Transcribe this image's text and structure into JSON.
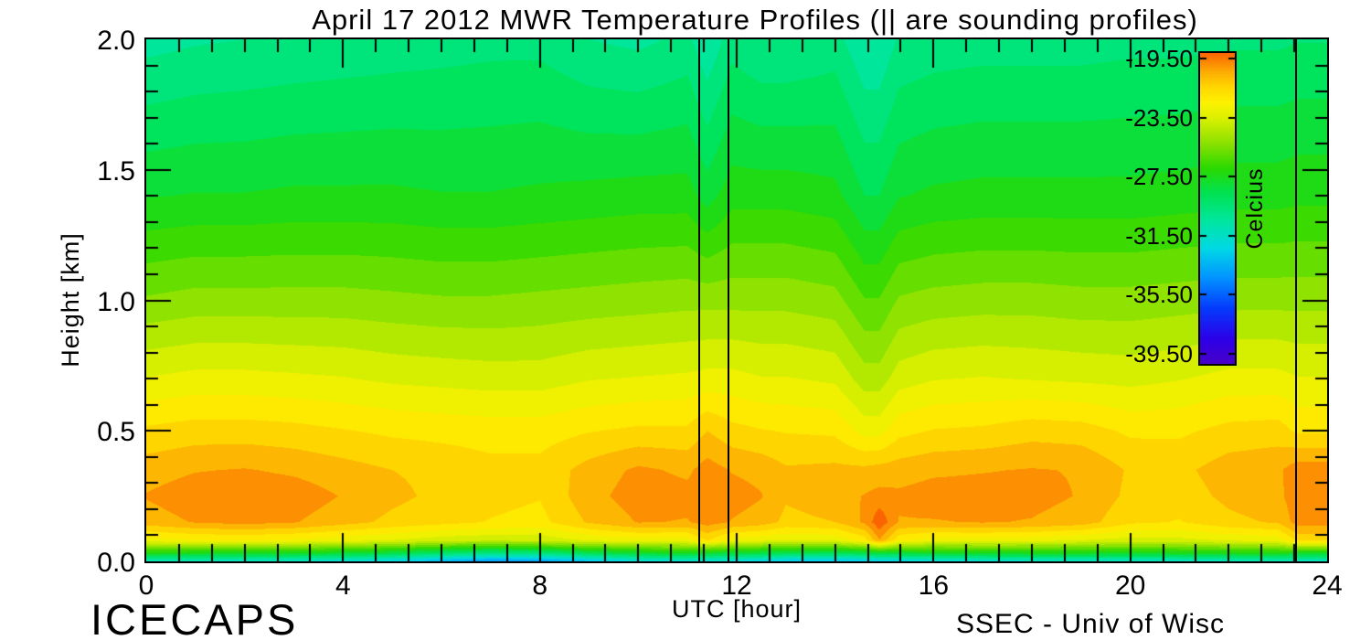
{
  "title": "April 17 2012 MWR Temperature Profiles (|| are sounding profiles)",
  "x_axis": {
    "label": "UTC [hour]",
    "min": 0,
    "max": 24,
    "major_ticks": [
      0,
      4,
      8,
      12,
      16,
      20,
      24
    ],
    "tick_labels": [
      "0",
      "4",
      "8",
      "12",
      "16",
      "20",
      "24"
    ],
    "minor_per_major": 6
  },
  "y_axis": {
    "label": "Height [km]",
    "min": 0,
    "max": 2,
    "major_ticks": [
      0.0,
      0.5,
      1.0,
      1.5,
      2.0
    ],
    "tick_labels": [
      "0.0",
      "0.5",
      "1.0",
      "1.5",
      "2.0"
    ],
    "minor_step": 0.1
  },
  "colorbar": {
    "unit_label": "Celcius",
    "tick_values": [
      -19.5,
      -23.5,
      -27.5,
      -31.5,
      -35.5,
      -39.5
    ],
    "tick_labels": [
      "-19.50",
      "-23.50",
      "-27.50",
      "-31.50",
      "-35.50",
      "-39.50"
    ]
  },
  "annotations": {
    "bottom_left": "ICECAPS",
    "bottom_right": "SSEC - Univ of Wisc"
  },
  "colors": {
    "axis": "#000000",
    "background": "#ffffff"
  },
  "chart_data": {
    "type": "heatmap",
    "xlabel": "UTC [hour]",
    "ylabel": "Height [km]",
    "x_range": [
      0,
      24
    ],
    "y_range": [
      0,
      2
    ],
    "band_step_c": 0.75,
    "sounding_line_hours": [
      11.24,
      11.83,
      23.37
    ],
    "x_hours": [
      0,
      1,
      2,
      3,
      4,
      5,
      6,
      7,
      8,
      9,
      10,
      11,
      11.4,
      11.9,
      12.5,
      13,
      14,
      14.6,
      14.9,
      15.3,
      16,
      17,
      18,
      19,
      20,
      21,
      22,
      23,
      23.4,
      24
    ],
    "y_heights_km": [
      0,
      0.03,
      0.08,
      0.15,
      0.25,
      0.35,
      0.5,
      0.7,
      1.0,
      1.4,
      2.0
    ],
    "temperature_c": [
      [
        -31.2,
        -31.3,
        -31.5,
        -31.6,
        -31.9,
        -32.5,
        -33.6,
        -34.4,
        -34.2,
        -33.2,
        -32.2,
        -31.8,
        -32.0,
        -32.2,
        -32.6,
        -33.0,
        -33.2,
        -33.0,
        -32.8,
        -32.6,
        -32.2,
        -31.9,
        -31.7,
        -31.7,
        -31.7,
        -31.6,
        -31.4,
        -31.3,
        -31.4,
        -31.4
      ],
      [
        -27.6,
        -27.7,
        -27.8,
        -27.9,
        -28.1,
        -28.5,
        -29.3,
        -29.9,
        -29.7,
        -28.8,
        -28.1,
        -27.8,
        -28.1,
        -28.2,
        -28.5,
        -28.8,
        -28.9,
        -28.6,
        -28.3,
        -28.2,
        -28.0,
        -27.8,
        -27.7,
        -27.7,
        -27.8,
        -27.7,
        -27.6,
        -27.5,
        -27.9,
        -27.9
      ],
      [
        -22.9,
        -22.6,
        -22.5,
        -22.7,
        -23.0,
        -23.3,
        -23.7,
        -23.9,
        -23.8,
        -23.2,
        -22.9,
        -22.9,
        -21.7,
        -22.9,
        -23.1,
        -23.3,
        -23.2,
        -22.2,
        -20.3,
        -22.4,
        -22.9,
        -22.9,
        -23.0,
        -23.3,
        -23.6,
        -23.5,
        -23.2,
        -23.0,
        -21.6,
        -21.6
      ],
      [
        -20.6,
        -20.2,
        -20.0,
        -20.2,
        -20.7,
        -21.2,
        -21.5,
        -21.8,
        -22.0,
        -20.9,
        -20.2,
        -20.3,
        -19.9,
        -20.3,
        -20.6,
        -21.2,
        -21.0,
        -20.1,
        -18.9,
        -20.3,
        -20.3,
        -20.2,
        -20.3,
        -20.6,
        -21.6,
        -21.8,
        -21.2,
        -20.9,
        -19.9,
        -19.9
      ],
      [
        -20.2,
        -19.8,
        -19.6,
        -19.8,
        -20.3,
        -20.8,
        -21.2,
        -21.5,
        -21.7,
        -20.5,
        -19.9,
        -20.0,
        -19.8,
        -19.9,
        -20.2,
        -20.9,
        -20.6,
        -20.2,
        -20.0,
        -20.1,
        -19.9,
        -19.9,
        -20.0,
        -20.3,
        -21.2,
        -21.4,
        -20.8,
        -20.5,
        -19.7,
        -19.7
      ],
      [
        -20.6,
        -20.3,
        -20.2,
        -20.4,
        -20.7,
        -21.0,
        -21.2,
        -21.5,
        -21.5,
        -20.7,
        -20.1,
        -20.4,
        -19.9,
        -20.3,
        -20.5,
        -20.9,
        -20.8,
        -20.8,
        -20.7,
        -20.6,
        -20.4,
        -20.3,
        -20.2,
        -20.3,
        -21.1,
        -21.2,
        -20.6,
        -20.4,
        -19.8,
        -19.8
      ],
      [
        -21.6,
        -21.4,
        -21.4,
        -21.5,
        -21.7,
        -21.9,
        -22.0,
        -22.1,
        -22.1,
        -21.8,
        -21.6,
        -21.6,
        -21.0,
        -21.5,
        -21.7,
        -21.8,
        -21.9,
        -22.8,
        -22.8,
        -22.0,
        -21.7,
        -21.6,
        -21.3,
        -21.4,
        -21.9,
        -21.9,
        -21.5,
        -21.4,
        -21.9,
        -21.9
      ],
      [
        -23.2,
        -23.0,
        -23.0,
        -23.1,
        -23.2,
        -23.4,
        -23.5,
        -23.6,
        -23.6,
        -23.3,
        -23.2,
        -23.1,
        -23.0,
        -23.0,
        -23.2,
        -23.2,
        -23.4,
        -24.4,
        -24.4,
        -23.6,
        -23.3,
        -23.2,
        -23.3,
        -23.4,
        -23.5,
        -23.3,
        -23.0,
        -23.0,
        -23.2,
        -23.2
      ],
      [
        -25.4,
        -25.2,
        -25.2,
        -25.2,
        -25.2,
        -25.3,
        -25.4,
        -25.4,
        -25.3,
        -25.2,
        -25.1,
        -25.0,
        -25.0,
        -25.0,
        -25.0,
        -25.0,
        -25.2,
        -26.2,
        -26.2,
        -25.4,
        -25.2,
        -25.1,
        -25.1,
        -25.2,
        -25.2,
        -25.1,
        -25.0,
        -25.0,
        -25.0,
        -25.0
      ],
      [
        -27.8,
        -27.7,
        -27.7,
        -27.6,
        -27.6,
        -27.6,
        -27.7,
        -27.7,
        -27.6,
        -27.5,
        -27.4,
        -27.4,
        -28.1,
        -27.3,
        -27.3,
        -27.3,
        -27.5,
        -28.5,
        -28.5,
        -27.8,
        -27.6,
        -27.5,
        -27.5,
        -27.5,
        -27.5,
        -27.4,
        -27.3,
        -27.3,
        -27.2,
        -27.2
      ],
      [
        -30.3,
        -30.1,
        -30.0,
        -29.9,
        -29.8,
        -29.7,
        -29.6,
        -29.5,
        -29.5,
        -30.0,
        -30.2,
        -29.8,
        -30.7,
        -29.6,
        -30.0,
        -30.0,
        -29.7,
        -30.7,
        -30.7,
        -29.9,
        -29.7,
        -29.6,
        -29.6,
        -29.6,
        -29.5,
        -29.5,
        -29.4,
        -29.4,
        -29.3,
        -29.3
      ]
    ],
    "colormap": {
      "domain": [
        -40.2,
        -19.1
      ],
      "stops": [
        [
          0.0,
          72,
          0,
          200
        ],
        [
          0.08,
          45,
          0,
          232
        ],
        [
          0.18,
          4,
          60,
          252
        ],
        [
          0.28,
          2,
          150,
          255
        ],
        [
          0.37,
          0,
          216,
          230
        ],
        [
          0.46,
          0,
          230,
          160
        ],
        [
          0.55,
          0,
          226,
          81
        ],
        [
          0.63,
          43,
          217,
          0
        ],
        [
          0.71,
          140,
          225,
          0
        ],
        [
          0.79,
          218,
          240,
          0
        ],
        [
          0.84,
          253,
          242,
          0
        ],
        [
          0.89,
          255,
          215,
          0
        ],
        [
          0.94,
          253,
          172,
          2
        ],
        [
          1.0,
          250,
          100,
          2
        ]
      ]
    }
  }
}
